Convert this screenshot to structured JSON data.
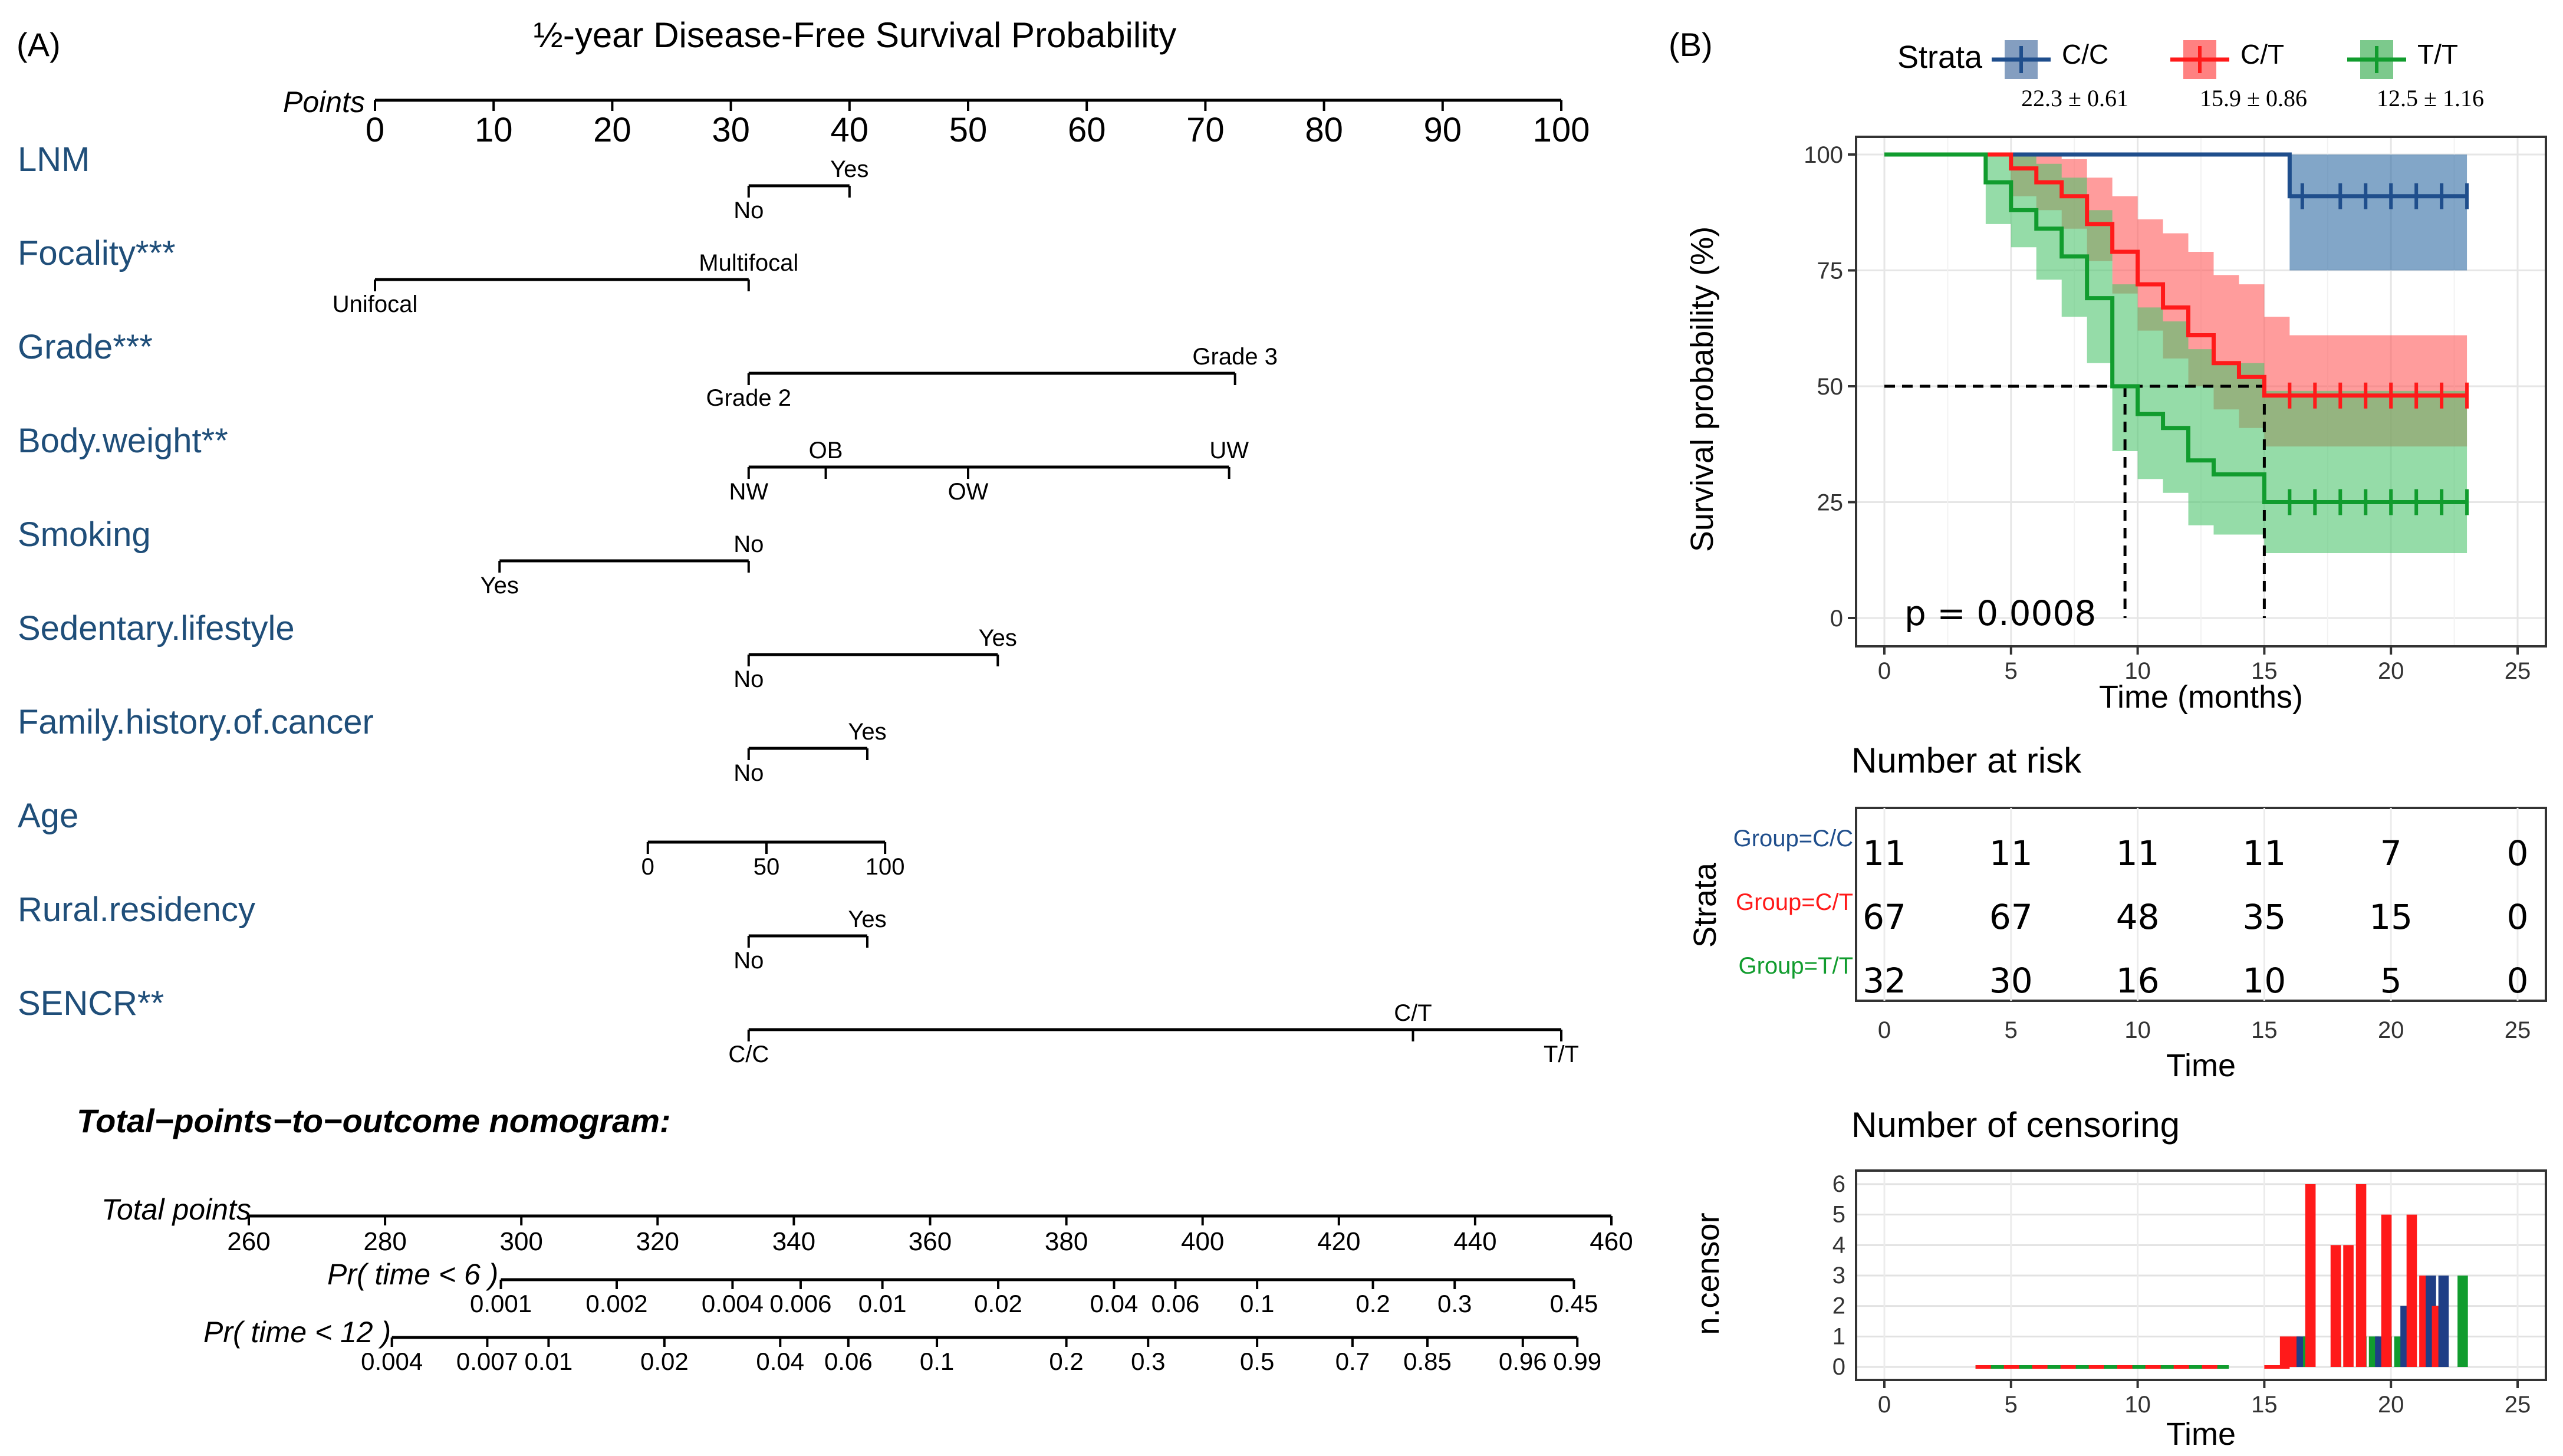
{
  "panel_a": {
    "label": "(A)",
    "title": "½-year Disease-Free Survival Probability",
    "points_axis": {
      "label": "Points",
      "min": 0,
      "max": 100,
      "ticks": [
        0,
        10,
        20,
        30,
        40,
        50,
        60,
        70,
        80,
        90,
        100
      ]
    },
    "variables": [
      {
        "name": "LNM",
        "levels": [
          {
            "label": "No",
            "points": 31.5,
            "pos": "below"
          },
          {
            "label": "Yes",
            "points": 40,
            "pos": "above"
          }
        ]
      },
      {
        "name": "Focality***",
        "levels": [
          {
            "label": "Unifocal",
            "points": 0,
            "pos": "below"
          },
          {
            "label": "Multifocal",
            "points": 31.5,
            "pos": "above"
          }
        ]
      },
      {
        "name": "Grade***",
        "levels": [
          {
            "label": "Grade 2",
            "points": 31.5,
            "pos": "below"
          },
          {
            "label": "Grade 3",
            "points": 72.5,
            "pos": "above"
          }
        ]
      },
      {
        "name": "Body.weight**",
        "levels": [
          {
            "label": "NW",
            "points": 31.5,
            "pos": "below"
          },
          {
            "label": "OB",
            "points": 38,
            "pos": "above"
          },
          {
            "label": "OW",
            "points": 50,
            "pos": "below"
          },
          {
            "label": "UW",
            "points": 72,
            "pos": "above"
          }
        ]
      },
      {
        "name": "Smoking",
        "levels": [
          {
            "label": "Yes",
            "points": 10.5,
            "pos": "below"
          },
          {
            "label": "No",
            "points": 31.5,
            "pos": "above"
          }
        ]
      },
      {
        "name": "Sedentary.lifestyle",
        "levels": [
          {
            "label": "No",
            "points": 31.5,
            "pos": "below"
          },
          {
            "label": "Yes",
            "points": 52.5,
            "pos": "above"
          }
        ]
      },
      {
        "name": "Family.history.of.cancer",
        "levels": [
          {
            "label": "No",
            "points": 31.5,
            "pos": "below"
          },
          {
            "label": "Yes",
            "points": 41.5,
            "pos": "above"
          }
        ]
      },
      {
        "name": "Age",
        "levels": [
          {
            "label": "0",
            "points": 23,
            "pos": "below"
          },
          {
            "label": "50",
            "points": 33,
            "pos": "below"
          },
          {
            "label": "100",
            "points": 43,
            "pos": "below"
          }
        ]
      },
      {
        "name": "Rural.residency",
        "levels": [
          {
            "label": "No",
            "points": 31.5,
            "pos": "below"
          },
          {
            "label": "Yes",
            "points": 41.5,
            "pos": "above"
          }
        ]
      },
      {
        "name": "SENCR**",
        "levels": [
          {
            "label": "C/C",
            "points": 31.5,
            "pos": "below"
          },
          {
            "label": "C/T",
            "points": 87.5,
            "pos": "above"
          },
          {
            "label": "T/T",
            "points": 100,
            "pos": "below"
          }
        ]
      }
    ],
    "subtitle": "Total−points−to−outcome nomogram:",
    "total_points": {
      "label": "Total points",
      "min": 260,
      "max": 460,
      "ticks": [
        260,
        280,
        300,
        320,
        340,
        360,
        380,
        400,
        420,
        440,
        460
      ]
    },
    "prob6": {
      "label": "Pr( time < 6 )",
      "ticks": [
        {
          "label": "0.001",
          "tp": 297
        },
        {
          "label": "0.002",
          "tp": 314
        },
        {
          "label": "0.004",
          "tp": 331
        },
        {
          "label": "0.006",
          "tp": 341
        },
        {
          "label": "0.01",
          "tp": 353
        },
        {
          "label": "0.02",
          "tp": 370
        },
        {
          "label": "0.04",
          "tp": 387
        },
        {
          "label": "0.06",
          "tp": 396
        },
        {
          "label": "0.1",
          "tp": 408
        },
        {
          "label": "0.2",
          "tp": 425
        },
        {
          "label": "0.3",
          "tp": 437
        },
        {
          "label": "0.45",
          "tp": 454.5
        }
      ]
    },
    "prob12": {
      "label": "Pr( time < 12 )",
      "ticks": [
        {
          "label": "0.004",
          "tp": 281
        },
        {
          "label": "0.007",
          "tp": 295
        },
        {
          "label": "0.01",
          "tp": 304
        },
        {
          "label": "0.02",
          "tp": 321
        },
        {
          "label": "0.04",
          "tp": 338
        },
        {
          "label": "0.06",
          "tp": 348
        },
        {
          "label": "0.1",
          "tp": 361
        },
        {
          "label": "0.2",
          "tp": 380
        },
        {
          "label": "0.3",
          "tp": 392
        },
        {
          "label": "0.5",
          "tp": 408
        },
        {
          "label": "0.7",
          "tp": 422
        },
        {
          "label": "0.85",
          "tp": 433
        },
        {
          "label": "0.96",
          "tp": 447
        },
        {
          "label": "0.99",
          "tp": 455
        }
      ]
    }
  },
  "panel_b": {
    "label": "(B)",
    "legend": {
      "title": "Strata",
      "items": [
        {
          "label": "C/C",
          "stat": "22.3 ± 0.61",
          "color": "#1f4e8c"
        },
        {
          "label": "C/T",
          "stat": "15.9 ± 0.86",
          "color": "#ff1a1a"
        },
        {
          "label": "T/T",
          "stat": "12.5 ± 1.16",
          "color": "#119c2e"
        }
      ]
    },
    "chart_data": {
      "type": "line",
      "xlabel": "Time (months)",
      "ylabel": "Survival probability (%)",
      "xlim": [
        0,
        25
      ],
      "ylim": [
        0,
        100
      ],
      "xticks": [
        0,
        5,
        10,
        15,
        20,
        25
      ],
      "yticks": [
        0,
        25,
        50,
        75,
        100
      ],
      "annotation": "p = 0.0008",
      "median_lines": [
        {
          "x": 9.5,
          "y": 50
        },
        {
          "x": 15,
          "y": 50
        }
      ],
      "series": [
        {
          "name": "C/C",
          "color": "#1f4e8c",
          "band_color": "#2f6aa3",
          "steps": [
            [
              0,
              100
            ],
            [
              16,
              100
            ],
            [
              16,
              91
            ],
            [
              23,
              91
            ]
          ],
          "band": [
            [
              16,
              100,
              75
            ],
            [
              23,
              100,
              75
            ]
          ],
          "censor": [
            16.5,
            18,
            19,
            20,
            21,
            22,
            23
          ]
        },
        {
          "name": "C/T",
          "color": "#ff1a1a",
          "band_color": "#ff5a5a",
          "steps": [
            [
              0,
              100
            ],
            [
              5,
              100
            ],
            [
              5,
              97
            ],
            [
              6,
              97
            ],
            [
              6,
              94
            ],
            [
              7,
              94
            ],
            [
              7,
              91
            ],
            [
              8,
              91
            ],
            [
              8,
              85
            ],
            [
              9,
              85
            ],
            [
              9,
              79
            ],
            [
              10,
              79
            ],
            [
              10,
              72
            ],
            [
              11,
              72
            ],
            [
              11,
              67
            ],
            [
              12,
              67
            ],
            [
              12,
              61
            ],
            [
              13,
              61
            ],
            [
              13,
              55
            ],
            [
              14,
              55
            ],
            [
              14,
              52
            ],
            [
              15,
              52
            ],
            [
              15,
              48
            ],
            [
              23,
              48
            ]
          ],
          "band": [
            [
              5,
              100,
              91
            ],
            [
              6,
              100,
              88
            ],
            [
              7,
              99,
              84
            ],
            [
              8,
              95,
              77
            ],
            [
              9,
              91,
              70
            ],
            [
              10,
              86,
              62
            ],
            [
              11,
              83,
              56
            ],
            [
              12,
              79,
              50
            ],
            [
              13,
              74,
              45
            ],
            [
              14,
              72,
              41
            ],
            [
              15,
              65,
              37
            ],
            [
              16,
              61,
              37
            ],
            [
              23,
              61,
              37
            ]
          ],
          "censor": [
            16,
            17,
            18,
            19,
            20,
            21,
            22,
            23
          ]
        },
        {
          "name": "T/T",
          "color": "#119c2e",
          "band_color": "#4fc56e",
          "steps": [
            [
              0,
              100
            ],
            [
              4,
              100
            ],
            [
              4,
              94
            ],
            [
              5,
              94
            ],
            [
              5,
              88
            ],
            [
              6,
              88
            ],
            [
              6,
              84
            ],
            [
              7,
              84
            ],
            [
              7,
              78
            ],
            [
              8,
              78
            ],
            [
              8,
              69
            ],
            [
              9,
              69
            ],
            [
              9,
              50
            ],
            [
              10,
              50
            ],
            [
              10,
              44
            ],
            [
              11,
              44
            ],
            [
              11,
              41
            ],
            [
              12,
              41
            ],
            [
              12,
              34
            ],
            [
              13,
              34
            ],
            [
              13,
              31
            ],
            [
              15,
              31
            ],
            [
              15,
              25
            ],
            [
              23,
              25
            ]
          ],
          "band": [
            [
              4,
              100,
              85
            ],
            [
              5,
              100,
              80
            ],
            [
              6,
              98,
              73
            ],
            [
              7,
              95,
              65
            ],
            [
              8,
              88,
              55
            ],
            [
              9,
              72,
              36
            ],
            [
              10,
              67,
              30
            ],
            [
              11,
              64,
              27
            ],
            [
              12,
              58,
              20
            ],
            [
              13,
              55,
              18
            ],
            [
              15,
              49,
              14
            ],
            [
              23,
              49,
              14
            ]
          ],
          "censor": [
            16,
            17,
            18,
            19,
            20,
            21,
            22,
            23
          ]
        }
      ]
    },
    "risk": {
      "title": "Number at risk",
      "ylabel": "Strata",
      "xlabel": "Time",
      "times": [
        0,
        5,
        10,
        15,
        20,
        25
      ],
      "rows": [
        {
          "label": "Group=C/C",
          "color": "#1f4e8c",
          "values": [
            "11",
            "11",
            "11",
            "11",
            "7",
            "0"
          ]
        },
        {
          "label": "Group=C/T",
          "color": "#ff1a1a",
          "values": [
            "67",
            "67",
            "48",
            "35",
            "15",
            "0"
          ]
        },
        {
          "label": "Group=T/T",
          "color": "#119c2e",
          "values": [
            "32",
            "30",
            "16",
            "10",
            "5",
            "0"
          ]
        }
      ]
    },
    "censoring": {
      "title": "Number of censoring",
      "ylabel": "n.censor",
      "xlabel": "Time",
      "ylim": [
        0,
        6
      ],
      "yticks": [
        0,
        1,
        2,
        3,
        4,
        5,
        6
      ],
      "xticks": [
        0,
        5,
        10,
        15,
        20,
        25
      ],
      "bars": [
        {
          "t": 16,
          "cc": 0,
          "ct": 1,
          "tt": 0
        },
        {
          "t": 16.4,
          "cc": 1,
          "ct": 1,
          "tt": 1
        },
        {
          "t": 17,
          "cc": 0,
          "ct": 6,
          "tt": 0
        },
        {
          "t": 17.5,
          "cc": 0,
          "ct": 0,
          "tt": 1
        },
        {
          "t": 18,
          "cc": 0,
          "ct": 4,
          "tt": 0
        },
        {
          "t": 18.5,
          "cc": 0,
          "ct": 4,
          "tt": 1
        },
        {
          "t": 19,
          "cc": 0,
          "ct": 6,
          "tt": 1
        },
        {
          "t": 19.5,
          "cc": 1,
          "ct": 0,
          "tt": 1
        },
        {
          "t": 20,
          "cc": 0,
          "ct": 5,
          "tt": 1
        },
        {
          "t": 20.5,
          "cc": 2,
          "ct": 0,
          "tt": 0
        },
        {
          "t": 21,
          "cc": 0,
          "ct": 5,
          "tt": 1
        },
        {
          "t": 21.5,
          "cc": 3,
          "ct": 3,
          "tt": 0
        },
        {
          "t": 22,
          "cc": 3,
          "ct": 2,
          "tt": 0
        },
        {
          "t": 22.5,
          "cc": 0,
          "ct": 0,
          "tt": 3
        }
      ]
    }
  }
}
